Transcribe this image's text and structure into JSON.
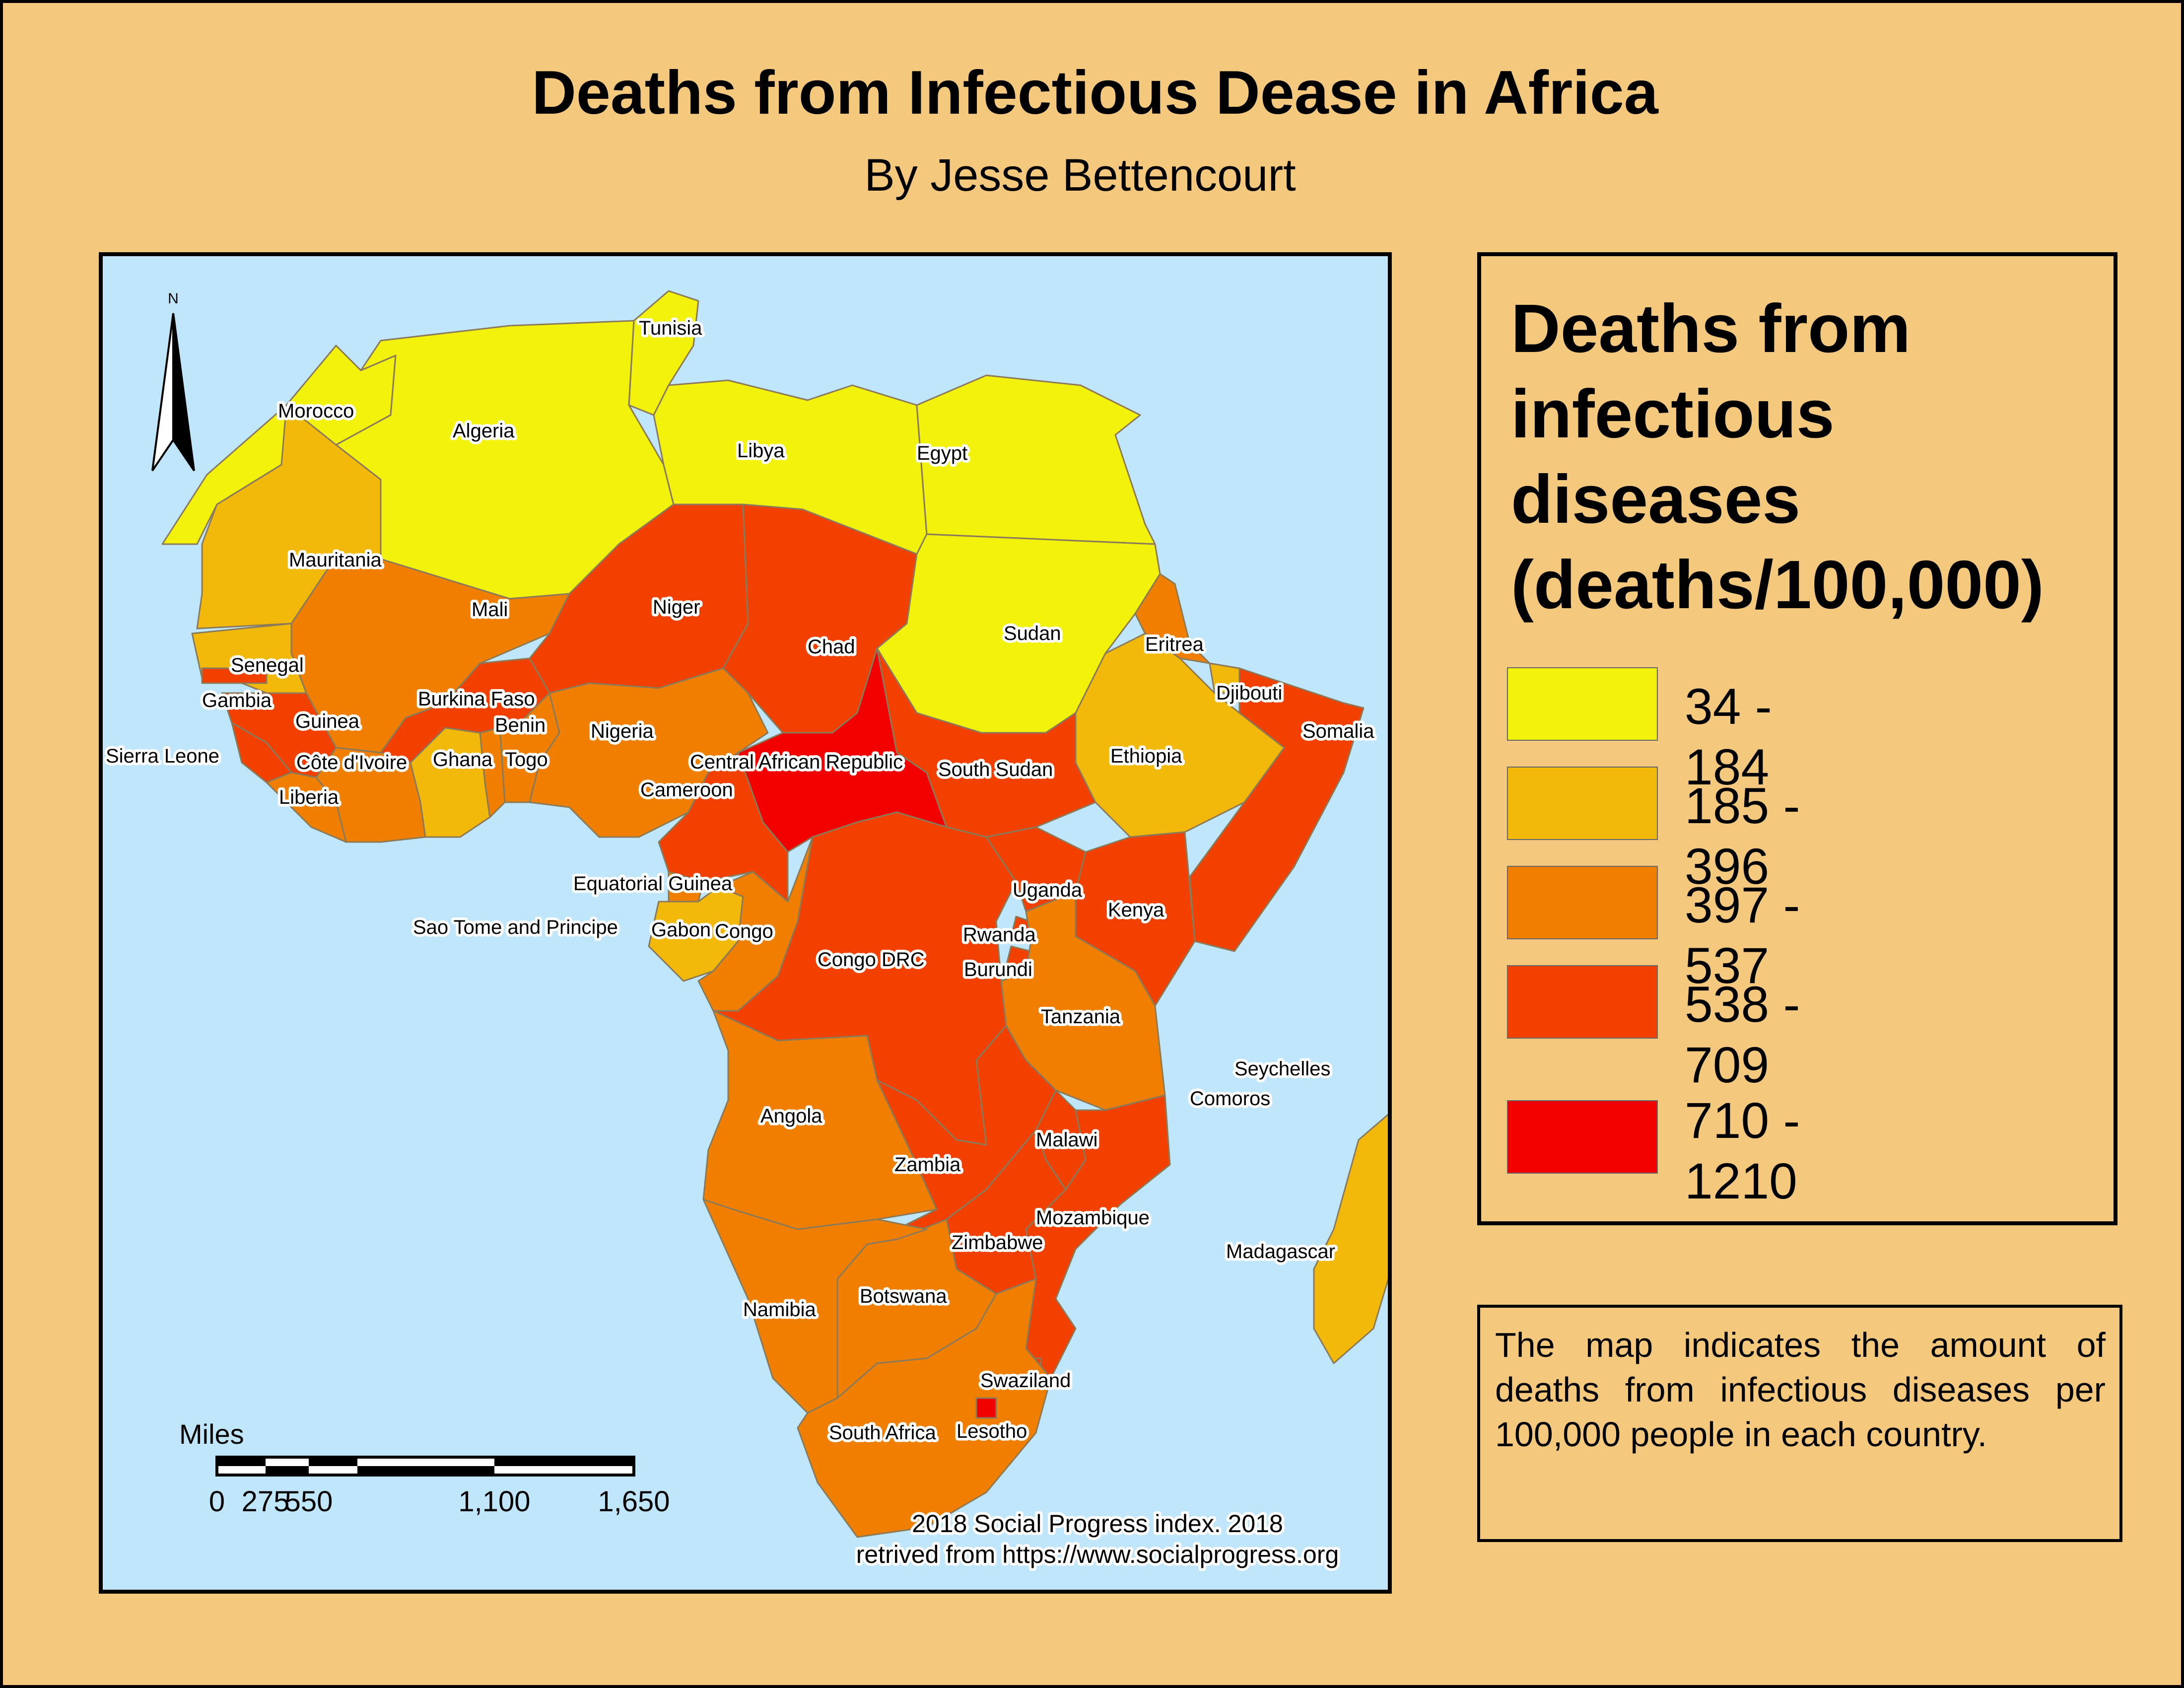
{
  "title": "Deaths from Infectious Dease in Africa",
  "subtitle": "By Jesse Bettencourt",
  "north_arrow": {
    "label": "N",
    "icon": "north-arrow-icon"
  },
  "legend": {
    "title": "Deaths from infectious diseases (deaths/100,000)",
    "classes": [
      {
        "label": "34 - 184",
        "color": "#f2f20c"
      },
      {
        "label": "185 - 396",
        "color": "#f2b80a"
      },
      {
        "label": "397 - 537",
        "color": "#f07f00"
      },
      {
        "label": "538 - 709",
        "color": "#f24000"
      },
      {
        "label": "710 - 1210",
        "color": "#f20000"
      }
    ]
  },
  "scale_bar": {
    "unit": "Miles",
    "ticks": [
      "0",
      "275",
      "550",
      "1,100",
      "1,650"
    ]
  },
  "source": {
    "line1": "2018 Social Progress index. 2018",
    "line2": "retrived from https://www.socialprogress.org"
  },
  "note": "The map indicates the amount of deaths from infectious diseases per 100,000 people in each country.",
  "countries": [
    {
      "name": "Tunisia",
      "class": 0
    },
    {
      "name": "Morocco",
      "class": 0
    },
    {
      "name": "Algeria",
      "class": 0
    },
    {
      "name": "Libya",
      "class": 0
    },
    {
      "name": "Egypt",
      "class": 0
    },
    {
      "name": "Mauritania",
      "class": 1
    },
    {
      "name": "Mali",
      "class": 2
    },
    {
      "name": "Niger",
      "class": 3
    },
    {
      "name": "Chad",
      "class": 3
    },
    {
      "name": "Sudan",
      "class": 0
    },
    {
      "name": "Eritrea",
      "class": 2
    },
    {
      "name": "Senegal",
      "class": 1
    },
    {
      "name": "Gambia",
      "class": 3
    },
    {
      "name": "Burkina Faso",
      "class": 3
    },
    {
      "name": "Djibouti",
      "class": 1
    },
    {
      "name": "Guinea",
      "class": 3
    },
    {
      "name": "Benin",
      "class": 2
    },
    {
      "name": "Nigeria",
      "class": 2
    },
    {
      "name": "Somalia",
      "class": 3
    },
    {
      "name": "Sierra Leone",
      "class": 3
    },
    {
      "name": "Côte d'Ivoire",
      "class": 2
    },
    {
      "name": "Ghana",
      "class": 1
    },
    {
      "name": "Togo",
      "class": 2
    },
    {
      "name": "Central African Republic",
      "class": 4
    },
    {
      "name": "South Sudan",
      "class": 3
    },
    {
      "name": "Ethiopia",
      "class": 1
    },
    {
      "name": "Liberia",
      "class": 2
    },
    {
      "name": "Cameroon",
      "class": 3
    },
    {
      "name": "Equatorial Guinea",
      "class": 2
    },
    {
      "name": "Uganda",
      "class": 3
    },
    {
      "name": "Kenya",
      "class": 3
    },
    {
      "name": "Sao Tome and Principe",
      "class": 1
    },
    {
      "name": "Gabon",
      "class": 1
    },
    {
      "name": "Congo",
      "class": 2
    },
    {
      "name": "Rwanda",
      "class": 3
    },
    {
      "name": "Congo DRC",
      "class": 3
    },
    {
      "name": "Burundi",
      "class": 3
    },
    {
      "name": "Tanzania",
      "class": 2
    },
    {
      "name": "Seychelles",
      "class": 1
    },
    {
      "name": "Comoros",
      "class": 2
    },
    {
      "name": "Angola",
      "class": 2
    },
    {
      "name": "Malawi",
      "class": 3
    },
    {
      "name": "Zambia",
      "class": 3
    },
    {
      "name": "Mozambique",
      "class": 3
    },
    {
      "name": "Zimbabwe",
      "class": 3
    },
    {
      "name": "Madagascar",
      "class": 1
    },
    {
      "name": "Botswana",
      "class": 2
    },
    {
      "name": "Namibia",
      "class": 2
    },
    {
      "name": "Swaziland",
      "class": 3
    },
    {
      "name": "South Africa",
      "class": 2
    },
    {
      "name": "Lesotho",
      "class": 4
    }
  ]
}
